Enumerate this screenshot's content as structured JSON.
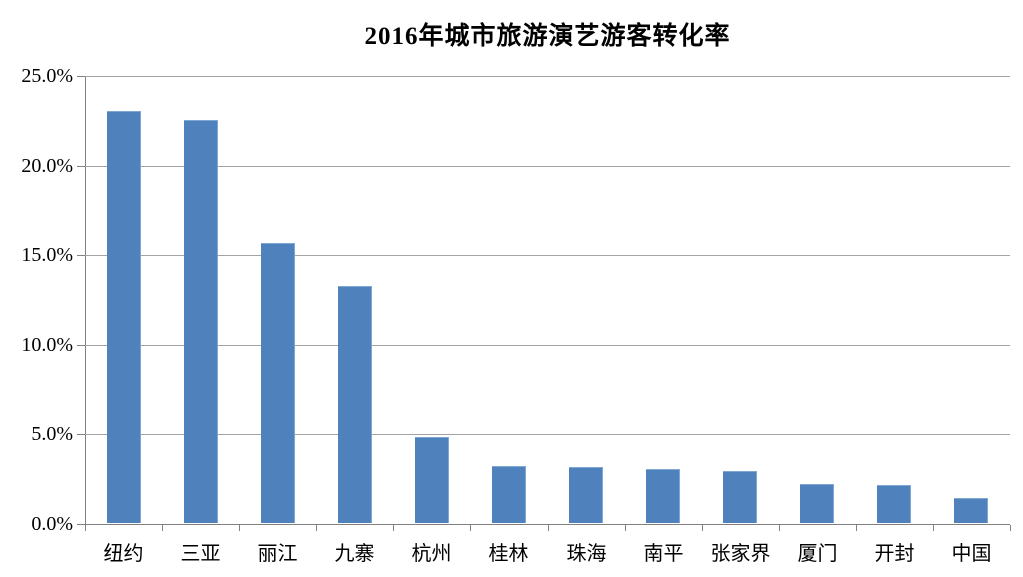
{
  "chart_data": {
    "type": "bar",
    "title": "2016年城市旅游演艺游客转化率",
    "categories": [
      "纽约",
      "三亚",
      "丽江",
      "九寨",
      "杭州",
      "桂林",
      "珠海",
      "南平",
      "张家界",
      "厦门",
      "开封",
      "中国"
    ],
    "values": [
      23.0,
      22.5,
      15.6,
      13.2,
      4.8,
      3.2,
      3.1,
      3.0,
      2.9,
      2.2,
      2.1,
      1.4
    ],
    "unit": "%",
    "xlabel": "",
    "ylabel": "",
    "ylim": [
      0,
      25
    ],
    "ytick_step": 5,
    "ytick_labels": [
      "0.0%",
      "5.0%",
      "10.0%",
      "15.0%",
      "20.0%",
      "25.0%"
    ],
    "grid": "horizontal",
    "legend": "none",
    "colors": {
      "bar": "#4F81BD",
      "bar_edge": "#7FA8D4",
      "gridline": "#A3A3A3",
      "axis": "#808080",
      "text": "#000000",
      "background": "#FFFFFF"
    }
  }
}
